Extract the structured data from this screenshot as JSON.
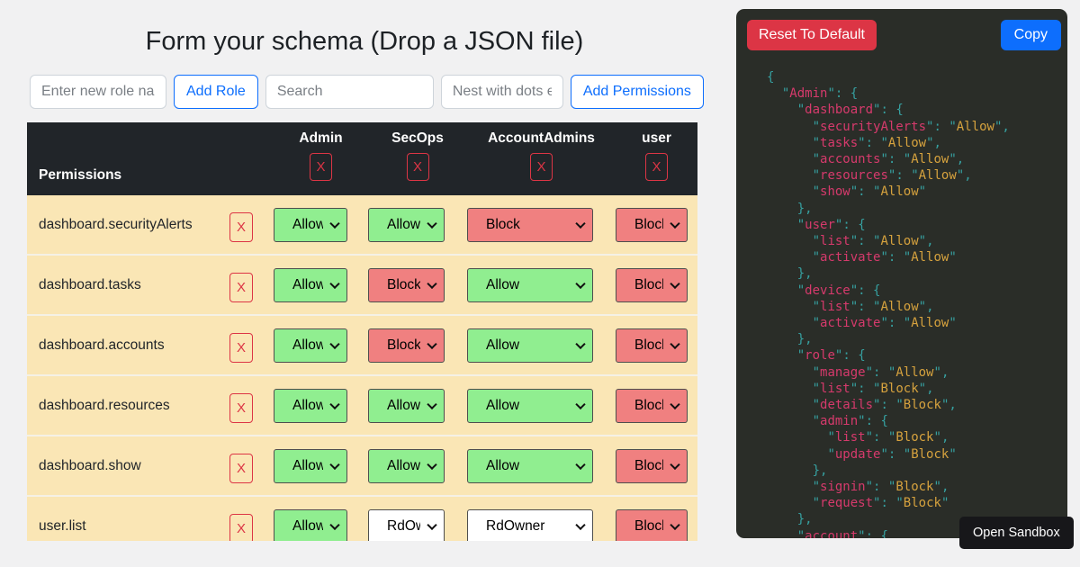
{
  "colors": {
    "allow": "#90ee90",
    "block": "#f08080",
    "custom": "#ffffff",
    "accent": "#0d6efd",
    "danger": "#dc3545",
    "header_bg": "#212529",
    "row_bg": "#fae6b5",
    "panel_bg": "#2a2d28"
  },
  "page": {
    "title": "Form your schema (Drop a JSON file)"
  },
  "toolbar": {
    "role_placeholder": "Enter new role name",
    "add_role": "Add Role",
    "search_placeholder": "Search",
    "nest_placeholder": "Nest with dots e.g",
    "add_permissions": "Add Permissions"
  },
  "table": {
    "permissions_label": "Permissions",
    "remove_glyph": "X",
    "roles": [
      "Admin",
      "SecOps",
      "AccountAdmins",
      "user"
    ],
    "rows": [
      {
        "permission": "dashboard.securityAlerts",
        "cells": [
          {
            "value": "Allow",
            "color": "allow"
          },
          {
            "value": "Allow",
            "color": "allow"
          },
          {
            "value": "Block",
            "color": "block"
          },
          {
            "value": "Block",
            "color": "block"
          }
        ]
      },
      {
        "permission": "dashboard.tasks",
        "cells": [
          {
            "value": "Allow",
            "color": "allow"
          },
          {
            "value": "Block",
            "color": "block"
          },
          {
            "value": "Allow",
            "color": "allow"
          },
          {
            "value": "Block",
            "color": "block"
          }
        ]
      },
      {
        "permission": "dashboard.accounts",
        "cells": [
          {
            "value": "Allow",
            "color": "allow"
          },
          {
            "value": "Block",
            "color": "block"
          },
          {
            "value": "Allow",
            "color": "allow"
          },
          {
            "value": "Block",
            "color": "block"
          }
        ]
      },
      {
        "permission": "dashboard.resources",
        "cells": [
          {
            "value": "Allow",
            "color": "allow"
          },
          {
            "value": "Allow",
            "color": "allow"
          },
          {
            "value": "Allow",
            "color": "allow"
          },
          {
            "value": "Block",
            "color": "block"
          }
        ]
      },
      {
        "permission": "dashboard.show",
        "cells": [
          {
            "value": "Allow",
            "color": "allow"
          },
          {
            "value": "Allow",
            "color": "allow"
          },
          {
            "value": "Allow",
            "color": "allow"
          },
          {
            "value": "Block",
            "color": "block"
          }
        ]
      },
      {
        "permission": "user.list",
        "cells": [
          {
            "value": "Allow",
            "color": "allow"
          },
          {
            "value": "RdOwner",
            "color": "custom"
          },
          {
            "value": "RdOwner",
            "color": "custom"
          },
          {
            "value": "Block",
            "color": "block"
          }
        ]
      }
    ]
  },
  "code_panel": {
    "reset_label": "Reset To Default",
    "copy_label": "Copy",
    "lines": [
      "{",
      "  \"Admin\": {",
      "    \"dashboard\": {",
      "      \"securityAlerts\": \"Allow\",",
      "      \"tasks\": \"Allow\",",
      "      \"accounts\": \"Allow\",",
      "      \"resources\": \"Allow\",",
      "      \"show\": \"Allow\"",
      "    },",
      "    \"user\": {",
      "      \"list\": \"Allow\",",
      "      \"activate\": \"Allow\"",
      "    },",
      "    \"device\": {",
      "      \"list\": \"Allow\",",
      "      \"activate\": \"Allow\"",
      "    },",
      "    \"role\": {",
      "      \"manage\": \"Allow\",",
      "      \"list\": \"Block\",",
      "      \"details\": \"Block\",",
      "      \"admin\": {",
      "        \"list\": \"Block\",",
      "        \"update\": \"Block\"",
      "      },",
      "      \"signin\": \"Block\",",
      "      \"request\": \"Block\"",
      "    },",
      "    \"account\": {"
    ]
  },
  "open_sandbox": "Open Sandbox"
}
